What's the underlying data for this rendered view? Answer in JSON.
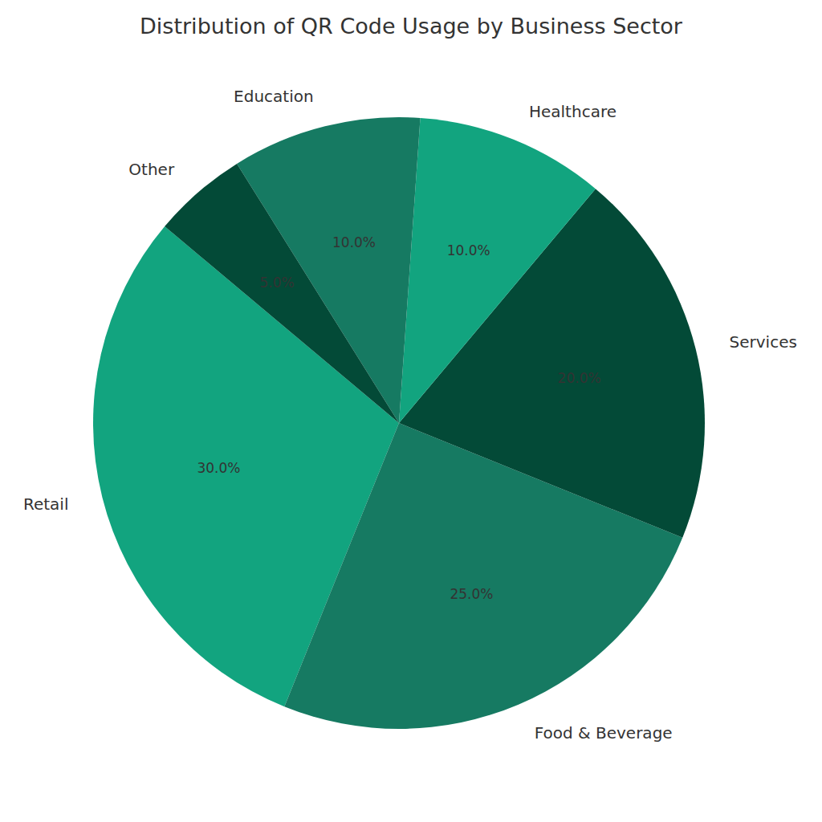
{
  "chart_data": {
    "type": "pie",
    "title": "Distribution of QR Code Usage by Business Sector",
    "categories": [
      "Retail",
      "Food & Beverage",
      "Services",
      "Healthcare",
      "Education",
      "Other"
    ],
    "values": [
      30,
      25,
      20,
      10,
      10,
      5
    ],
    "value_labels": [
      "30.0%",
      "25.0%",
      "20.0%",
      "10.0%",
      "10.0%",
      "5.0%"
    ],
    "colors": [
      "#12a47f",
      "#167a62",
      "#034a37",
      "#12a47f",
      "#167a62",
      "#034a37"
    ],
    "data_labels": true
  }
}
